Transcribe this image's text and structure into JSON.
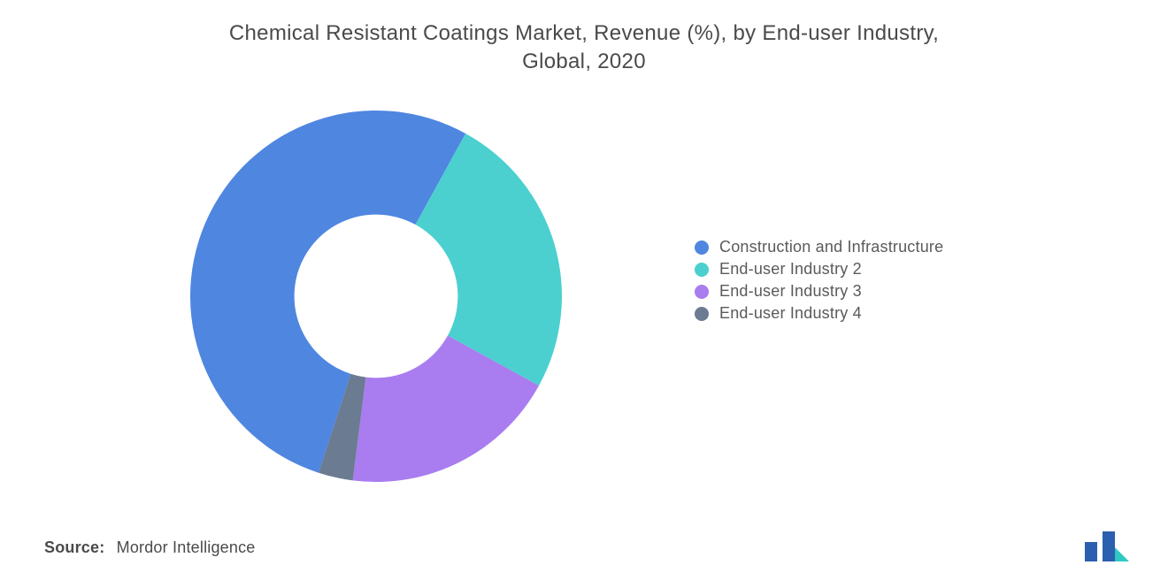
{
  "title_line1": "Chemical Resistant Coatings Market, Revenue (%), by End-user Industry,",
  "title_line2": "Global, 2020",
  "chart": {
    "type": "donut",
    "inner_radius_ratio": 0.44,
    "background_color": "#ffffff",
    "slices": [
      {
        "label": "Construction and Infrastructure",
        "value": 53,
        "color": "#4f86e0"
      },
      {
        "label": "End-user Industry 2",
        "value": 25,
        "color": "#4bd0cf"
      },
      {
        "label": "End-user Industry 3",
        "value": 19,
        "color": "#a97cf0"
      },
      {
        "label": "End-user Industry 4",
        "value": 3,
        "color": "#6b7b91"
      }
    ],
    "start_angle_deg": -162
  },
  "legend": {
    "items": [
      {
        "label": "Construction and Infrastructure",
        "color": "#4f86e0"
      },
      {
        "label": "End-user Industry 2",
        "color": "#4bd0cf"
      },
      {
        "label": "End-user Industry 3",
        "color": "#a97cf0"
      },
      {
        "label": "End-user Industry 4",
        "color": "#6b7b91"
      }
    ],
    "font_size_pt": 14,
    "text_color": "#5a5a5a"
  },
  "source": {
    "label": "Source:",
    "value": "Mordor Intelligence"
  },
  "logo": {
    "bar_color": "#2b5fb0",
    "accent_color": "#2fc9c3"
  },
  "title_font_size_pt": 18,
  "title_color": "#4a4a4a"
}
